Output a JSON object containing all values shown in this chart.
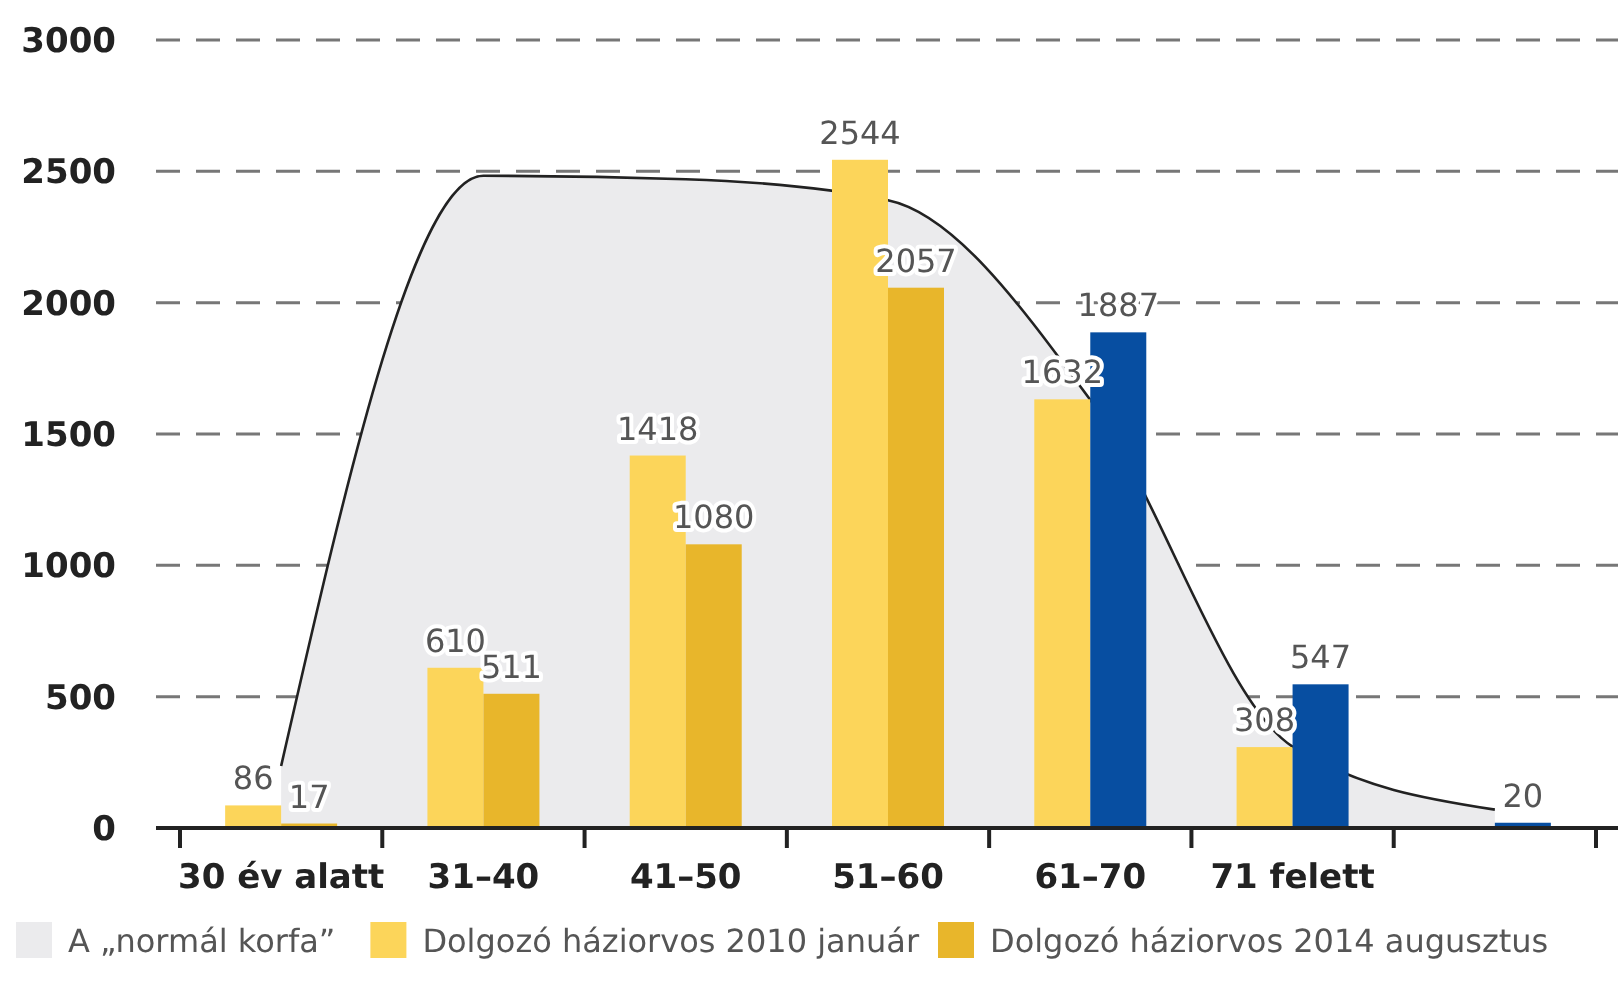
{
  "chart_data": {
    "type": "bar",
    "categories": [
      "30 év alatt",
      "31–40",
      "41–50",
      "51–60",
      "61–70",
      "71 felett",
      null
    ],
    "series": [
      {
        "name": "A „normál korfa”",
        "type": "area",
        "color": "#ebebed",
        "values": [
          236,
          2483,
          2470,
          2390,
          1630,
          310,
          70
        ]
      },
      {
        "name": "Dolgozó háziorvos 2010 január",
        "color": "#fcd55a",
        "values": [
          86,
          610,
          1418,
          2544,
          1632,
          308,
          null
        ],
        "value_labels": [
          "86",
          "610",
          "1418",
          "2544",
          "1632",
          "308",
          null
        ]
      },
      {
        "name": "Dolgozó háziorvos 2014 augusztus",
        "color": "#e8b62b",
        "colors": [
          "#e8b62b",
          "#e8b62b",
          "#e8b62b",
          "#e8b62b",
          "#074ea1",
          "#074ea1",
          "#074ea1"
        ],
        "values": [
          17,
          511,
          1080,
          2057,
          1887,
          547,
          20
        ],
        "value_labels": [
          "17",
          "511",
          "1080",
          "2057",
          "1887",
          "547",
          "20"
        ]
      }
    ],
    "ylim": [
      0,
      3000
    ],
    "yticks": [
      0,
      500,
      1000,
      1500,
      2000,
      2500,
      3000
    ],
    "grid": "y",
    "legend": "bottom"
  }
}
